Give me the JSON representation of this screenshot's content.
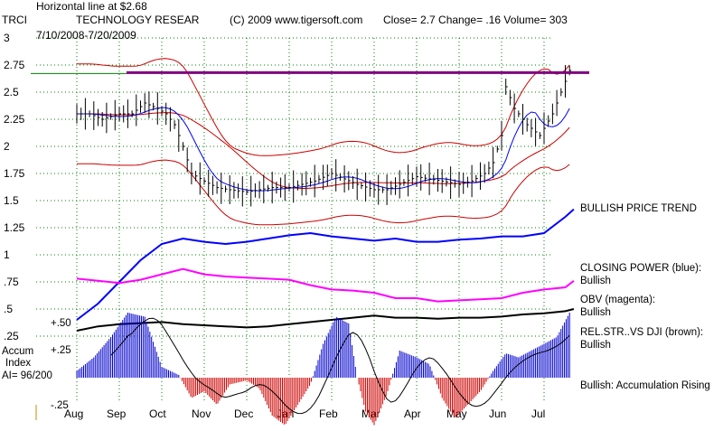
{
  "header": {
    "annotation": "Horizontal line at $2.68",
    "ticker": "TRCI",
    "company": "TECHNOLOGY RESEAR",
    "copyright": "(C) 2009 www.tigersoft.com",
    "quote": "Close=  2.7  Change= .16 Volume= 303",
    "date_range": "7/10/2008-7/20/2009"
  },
  "colors": {
    "price_bars": "#000000",
    "moving_avg_65": "#cc0000",
    "moving_avg_21": "#0000ff",
    "bands": "#cc0000",
    "horizontal_line": "#800080",
    "horizontal_line_green": "#008000",
    "closing_power": "#0000ff",
    "obv": "#ff00ff",
    "relative_strength": "#000000",
    "accum_positive": "#0000cc",
    "accum_negative": "#cc0000",
    "grid": "#008000"
  },
  "right_panel": [
    {
      "label": "BULLISH PRICE TREND",
      "value": ""
    },
    {
      "label": "CLOSING POWER (blue):",
      "value": "Bullish"
    },
    {
      "label": "OBV (magenta):",
      "value": "Bullish"
    },
    {
      "label": "REL.STR..VS DJI (brown):",
      "value": "Bullish"
    },
    {
      "label": "Bullish: Accumulation Rising",
      "value": ""
    }
  ],
  "accum": {
    "label_line1": "Accum",
    "label_line2": "Index",
    "ai_text": "AI= 96/200",
    "tick_top": "+.50",
    "tick_mid": "+.25",
    "tick_bottom": "-.25"
  },
  "chart_data": {
    "type": "line",
    "title": "TECHNOLOGY RESEAR",
    "xlabel": "",
    "ylabel": "",
    "x_ticks": [
      "Aug",
      "Sep",
      "Oct",
      "Nov",
      "Dec",
      "Jan",
      "Feb",
      "Mar",
      "Apr",
      "May",
      "Jun",
      "Jul"
    ],
    "y_ticks": [
      "3",
      "2.75",
      "2.5",
      "2.25",
      "2",
      "1.75",
      "1.5",
      "1.25",
      "1",
      ".75",
      ".5",
      ".25"
    ],
    "ylim": [
      0.2,
      3.0
    ],
    "grid": true,
    "horizontal_line": 2.68,
    "close_series": [
      {
        "m": 0.0,
        "v": 2.3
      },
      {
        "m": 0.3,
        "v": 2.3
      },
      {
        "m": 0.6,
        "v": 2.25
      },
      {
        "m": 1.0,
        "v": 2.3
      },
      {
        "m": 1.3,
        "v": 2.3
      },
      {
        "m": 1.6,
        "v": 2.4
      },
      {
        "m": 1.9,
        "v": 2.35
      },
      {
        "m": 2.1,
        "v": 2.3
      },
      {
        "m": 2.3,
        "v": 2.2
      },
      {
        "m": 2.5,
        "v": 2.0
      },
      {
        "m": 2.7,
        "v": 1.75
      },
      {
        "m": 3.0,
        "v": 1.68
      },
      {
        "m": 3.3,
        "v": 1.62
      },
      {
        "m": 3.6,
        "v": 1.6
      },
      {
        "m": 4.0,
        "v": 1.58
      },
      {
        "m": 4.3,
        "v": 1.6
      },
      {
        "m": 4.6,
        "v": 1.62
      },
      {
        "m": 5.0,
        "v": 1.62
      },
      {
        "m": 5.3,
        "v": 1.65
      },
      {
        "m": 5.6,
        "v": 1.68
      },
      {
        "m": 6.0,
        "v": 1.75
      },
      {
        "m": 6.3,
        "v": 1.7
      },
      {
        "m": 6.6,
        "v": 1.65
      },
      {
        "m": 7.0,
        "v": 1.6
      },
      {
        "m": 7.3,
        "v": 1.6
      },
      {
        "m": 7.6,
        "v": 1.65
      },
      {
        "m": 8.0,
        "v": 1.72
      },
      {
        "m": 8.3,
        "v": 1.7
      },
      {
        "m": 8.6,
        "v": 1.68
      },
      {
        "m": 9.0,
        "v": 1.65
      },
      {
        "m": 9.3,
        "v": 1.68
      },
      {
        "m": 9.6,
        "v": 1.75
      },
      {
        "m": 9.8,
        "v": 1.85
      },
      {
        "m": 10.0,
        "v": 2.1
      },
      {
        "m": 10.1,
        "v": 2.55
      },
      {
        "m": 10.3,
        "v": 2.35
      },
      {
        "m": 10.6,
        "v": 2.2
      },
      {
        "m": 10.9,
        "v": 2.1
      },
      {
        "m": 11.2,
        "v": 2.3
      },
      {
        "m": 11.4,
        "v": 2.5
      },
      {
        "m": 11.6,
        "v": 2.7
      }
    ],
    "series": [
      {
        "name": "CLOSING POWER (blue)",
        "points": [
          [
            0,
            0.4
          ],
          [
            0.5,
            0.55
          ],
          [
            1,
            0.75
          ],
          [
            1.5,
            0.95
          ],
          [
            2,
            1.1
          ],
          [
            2.5,
            1.15
          ],
          [
            3,
            1.12
          ],
          [
            3.5,
            1.1
          ],
          [
            4,
            1.12
          ],
          [
            4.5,
            1.15
          ],
          [
            5,
            1.18
          ],
          [
            5.5,
            1.2
          ],
          [
            6,
            1.17
          ],
          [
            6.5,
            1.15
          ],
          [
            7,
            1.13
          ],
          [
            7.5,
            1.15
          ],
          [
            8,
            1.12
          ],
          [
            8.5,
            1.12
          ],
          [
            9,
            1.14
          ],
          [
            9.5,
            1.15
          ],
          [
            10,
            1.17
          ],
          [
            10.5,
            1.17
          ],
          [
            11,
            1.2
          ],
          [
            11.5,
            1.35
          ],
          [
            11.7,
            1.42
          ]
        ]
      },
      {
        "name": "OBV (magenta)",
        "points": [
          [
            0,
            0.78
          ],
          [
            0.5,
            0.76
          ],
          [
            1,
            0.74
          ],
          [
            1.5,
            0.77
          ],
          [
            2,
            0.82
          ],
          [
            2.5,
            0.87
          ],
          [
            3,
            0.82
          ],
          [
            3.5,
            0.8
          ],
          [
            4,
            0.79
          ],
          [
            4.5,
            0.78
          ],
          [
            5,
            0.77
          ],
          [
            5.5,
            0.72
          ],
          [
            6,
            0.68
          ],
          [
            6.5,
            0.67
          ],
          [
            7,
            0.65
          ],
          [
            7.5,
            0.6
          ],
          [
            8,
            0.6
          ],
          [
            8.5,
            0.57
          ],
          [
            9,
            0.58
          ],
          [
            9.5,
            0.59
          ],
          [
            10,
            0.6
          ],
          [
            10.5,
            0.65
          ],
          [
            11,
            0.68
          ],
          [
            11.5,
            0.7
          ],
          [
            11.7,
            0.76
          ]
        ]
      },
      {
        "name": "REL.STR..VS DJI (brown)",
        "points": [
          [
            0,
            0.3
          ],
          [
            0.5,
            0.34
          ],
          [
            1,
            0.36
          ],
          [
            1.5,
            0.37
          ],
          [
            2,
            0.38
          ],
          [
            2.5,
            0.36
          ],
          [
            3,
            0.35
          ],
          [
            3.5,
            0.34
          ],
          [
            4,
            0.33
          ],
          [
            4.5,
            0.34
          ],
          [
            5,
            0.36
          ],
          [
            5.5,
            0.38
          ],
          [
            6,
            0.4
          ],
          [
            6.5,
            0.42
          ],
          [
            7,
            0.44
          ],
          [
            7.5,
            0.42
          ],
          [
            8,
            0.42
          ],
          [
            8.5,
            0.41
          ],
          [
            9,
            0.42
          ],
          [
            9.5,
            0.42
          ],
          [
            10,
            0.43
          ],
          [
            10.5,
            0.45
          ],
          [
            11,
            0.46
          ],
          [
            11.5,
            0.48
          ],
          [
            11.7,
            0.5
          ]
        ]
      }
    ],
    "accumulation_index": [
      {
        "m": 0.0,
        "v": 0.05
      },
      {
        "m": 0.4,
        "v": 0.15
      },
      {
        "m": 0.8,
        "v": 0.3
      },
      {
        "m": 1.2,
        "v": 0.48
      },
      {
        "m": 1.6,
        "v": 0.45
      },
      {
        "m": 2.0,
        "v": 0.08
      },
      {
        "m": 2.4,
        "v": 0.02
      },
      {
        "m": 2.7,
        "v": -0.15
      },
      {
        "m": 3.0,
        "v": -0.1
      },
      {
        "m": 3.3,
        "v": -0.2
      },
      {
        "m": 3.6,
        "v": -0.05
      },
      {
        "m": 4.0,
        "v": -0.02
      },
      {
        "m": 4.3,
        "v": -0.08
      },
      {
        "m": 4.6,
        "v": -0.28
      },
      {
        "m": 4.9,
        "v": -0.35
      },
      {
        "m": 5.2,
        "v": -0.2
      },
      {
        "m": 5.5,
        "v": -0.05
      },
      {
        "m": 5.8,
        "v": 0.25
      },
      {
        "m": 6.1,
        "v": 0.45
      },
      {
        "m": 6.4,
        "v": 0.4
      },
      {
        "m": 6.6,
        "v": 0.0
      },
      {
        "m": 6.8,
        "v": -0.25
      },
      {
        "m": 7.0,
        "v": -0.35
      },
      {
        "m": 7.3,
        "v": -0.12
      },
      {
        "m": 7.6,
        "v": 0.2
      },
      {
        "m": 8.0,
        "v": 0.15
      },
      {
        "m": 8.3,
        "v": 0.1
      },
      {
        "m": 8.6,
        "v": -0.15
      },
      {
        "m": 8.9,
        "v": -0.3
      },
      {
        "m": 9.2,
        "v": -0.2
      },
      {
        "m": 9.5,
        "v": -0.1
      },
      {
        "m": 9.8,
        "v": 0.05
      },
      {
        "m": 10.1,
        "v": 0.18
      },
      {
        "m": 10.4,
        "v": 0.15
      },
      {
        "m": 10.7,
        "v": 0.2
      },
      {
        "m": 11.0,
        "v": 0.25
      },
      {
        "m": 11.3,
        "v": 0.3
      },
      {
        "m": 11.6,
        "v": 0.48
      }
    ]
  }
}
